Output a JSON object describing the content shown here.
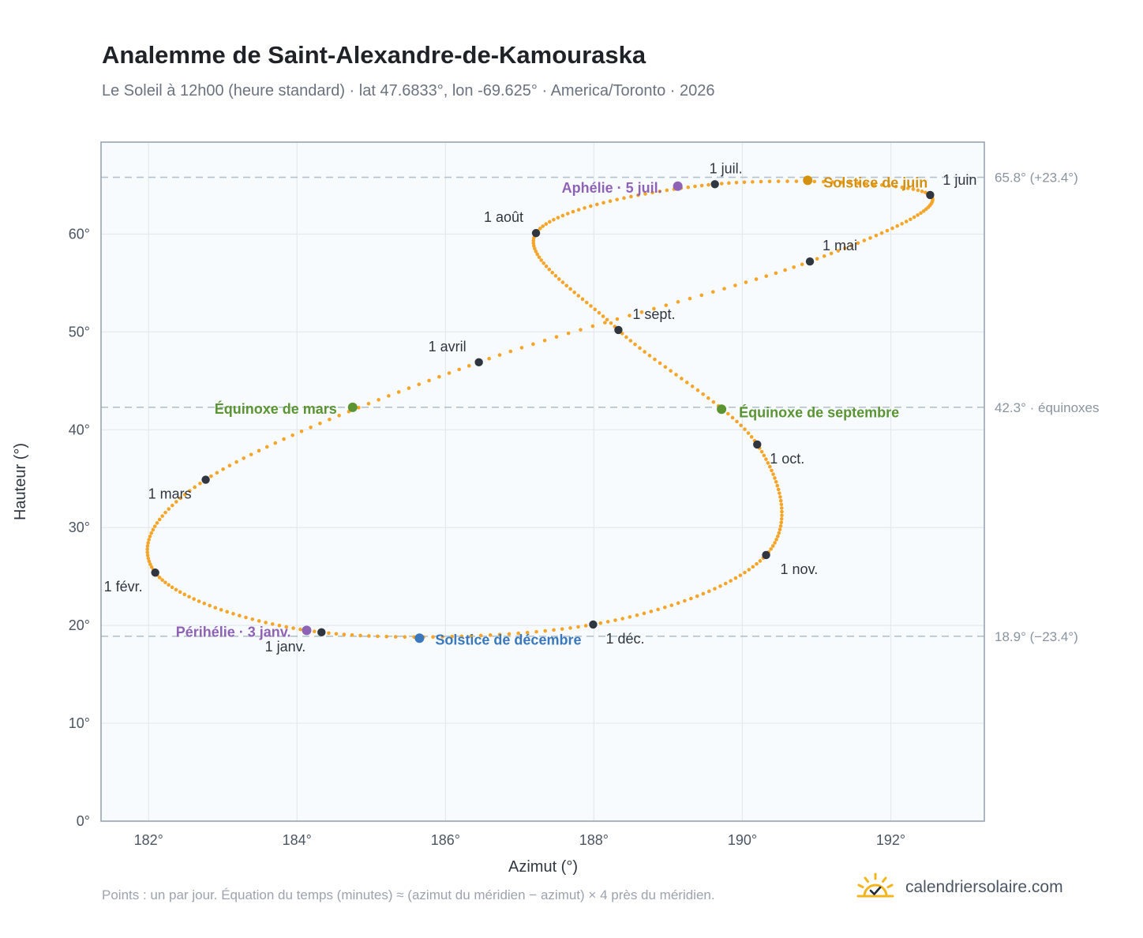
{
  "header": {
    "title": "Analemme de Saint-Alexandre-de-Kamouraska",
    "subtitle": "Le Soleil à 12h00 (heure standard) · lat 47.6833°, lon -69.625° · America/Toronto · 2026"
  },
  "footer": {
    "note": "Points : un par jour. Équation du temps (minutes) ≈ (azimut du méridien − azimut) × 4 près du méridien.",
    "brand": "calendriersolaire.com",
    "brand_icon": "sun-check-icon"
  },
  "colors": {
    "curve": "#f4a52a",
    "month_marker": "#2f3640",
    "equinox": "#5a9433",
    "solstice_june": "#d4900f",
    "solstice_december": "#3a78bd",
    "apsis": "#8e63b5",
    "reference_line": "#b4c2ce",
    "plot_background": "#f8fbfd",
    "grid": "#e3e9ef"
  },
  "chart_data": {
    "type": "scatter",
    "xlabel": "Azimut (°)",
    "ylabel": "Hauteur (°)",
    "xlim": [
      181.36,
      193.26
    ],
    "ylim": [
      0,
      69.4
    ],
    "grid": true,
    "x_ticks": [
      {
        "value": 182,
        "label": "182°"
      },
      {
        "value": 184,
        "label": "184°"
      },
      {
        "value": 186,
        "label": "186°"
      },
      {
        "value": 188,
        "label": "188°"
      },
      {
        "value": 190,
        "label": "190°"
      },
      {
        "value": 192,
        "label": "192°"
      }
    ],
    "y_ticks": [
      {
        "value": 0,
        "label": "0°"
      },
      {
        "value": 10,
        "label": "10°"
      },
      {
        "value": 20,
        "label": "20°"
      },
      {
        "value": 30,
        "label": "30°"
      },
      {
        "value": 40,
        "label": "40°"
      },
      {
        "value": 50,
        "label": "50°"
      },
      {
        "value": 60,
        "label": "60°"
      }
    ],
    "reference_lines": [
      {
        "y": 65.8,
        "label": "65.8° (+23.4°)"
      },
      {
        "y": 42.3,
        "label": "42.3° · équinoxes"
      },
      {
        "y": 18.9,
        "label": "18.9° (−23.4°)"
      }
    ],
    "series": [
      {
        "marker": "daily-points",
        "points": [
          {
            "day": 0,
            "x": 184.33,
            "y": 19.3
          },
          {
            "day": 31,
            "x": 182.09,
            "y": 25.4
          },
          {
            "day": 59,
            "x": 182.77,
            "y": 34.9
          },
          {
            "day": 90,
            "x": 186.45,
            "y": 46.9
          },
          {
            "day": 120,
            "x": 190.91,
            "y": 57.2
          },
          {
            "day": 151,
            "x": 192.53,
            "y": 64.0
          },
          {
            "day": 181,
            "x": 189.63,
            "y": 65.1
          },
          {
            "day": 212,
            "x": 187.22,
            "y": 60.1
          },
          {
            "day": 243,
            "x": 188.33,
            "y": 50.2
          },
          {
            "day": 273,
            "x": 190.2,
            "y": 38.5
          },
          {
            "day": 304,
            "x": 190.32,
            "y": 27.2
          },
          {
            "day": 334,
            "x": 187.99,
            "y": 20.1
          },
          {
            "day": 365,
            "x": 184.33,
            "y": 19.3
          }
        ]
      }
    ],
    "month_markers": [
      {
        "label": "1 janv.",
        "x": 184.33,
        "y": 19.3
      },
      {
        "label": "1 févr.",
        "x": 182.09,
        "y": 25.4
      },
      {
        "label": "1 mars",
        "x": 182.77,
        "y": 34.9
      },
      {
        "label": "1 avril",
        "x": 186.45,
        "y": 46.9
      },
      {
        "label": "1 mai",
        "x": 190.91,
        "y": 57.2
      },
      {
        "label": "1 juin",
        "x": 192.53,
        "y": 64.0
      },
      {
        "label": "1 juil.",
        "x": 189.63,
        "y": 65.1
      },
      {
        "label": "1 août",
        "x": 187.22,
        "y": 60.1
      },
      {
        "label": "1 sept.",
        "x": 188.33,
        "y": 50.2
      },
      {
        "label": "1 oct.",
        "x": 190.2,
        "y": 38.5
      },
      {
        "label": "1 nov.",
        "x": 190.32,
        "y": 27.2
      },
      {
        "label": "1 déc.",
        "x": 187.99,
        "y": 20.1
      }
    ],
    "events": [
      {
        "label": "Équinoxe de mars",
        "x": 184.75,
        "y": 42.3,
        "kind": "equinox"
      },
      {
        "label": "Équinoxe de septembre",
        "x": 189.72,
        "y": 42.1,
        "kind": "equinox"
      },
      {
        "label": "Solstice de juin",
        "x": 190.88,
        "y": 65.5,
        "kind": "solstice_june"
      },
      {
        "label": "Solstice de décembre",
        "x": 185.65,
        "y": 18.7,
        "kind": "solstice_december"
      },
      {
        "label": "Aphélie · 5 juil.",
        "x": 189.13,
        "y": 64.9,
        "kind": "apsis"
      },
      {
        "label": "Périhélie · 3 janv.",
        "x": 184.13,
        "y": 19.5,
        "kind": "apsis"
      }
    ]
  }
}
